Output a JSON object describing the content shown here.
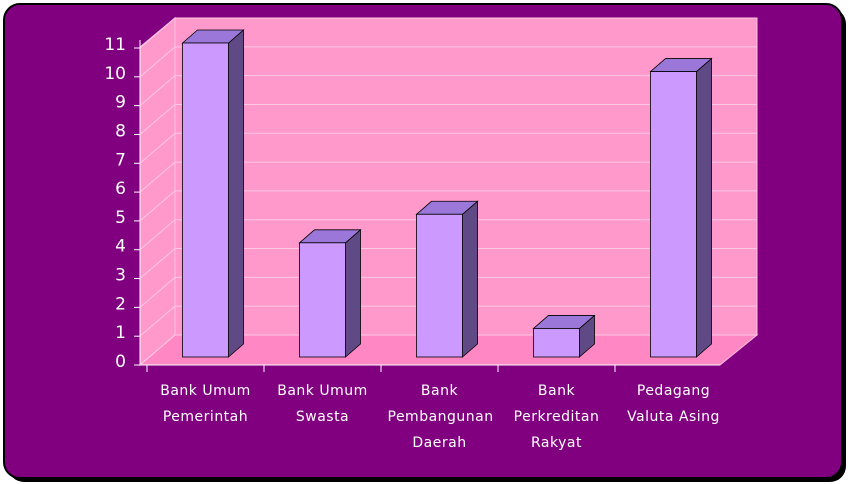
{
  "chart_data": {
    "type": "bar",
    "categories": [
      "Bank Umum Pemerintah",
      "Bank Umum Swasta",
      "Bank Pembangunan Daerah",
      "Bank Perkreditan Rakyat",
      "Pedagang Valuta Asing"
    ],
    "values": [
      11,
      4,
      5,
      1,
      10
    ],
    "color": "#cc99ff",
    "ylim": [
      0,
      11
    ],
    "yticks": [
      0,
      1,
      2,
      3,
      4,
      5,
      6,
      7,
      8,
      9,
      10,
      11
    ],
    "grid": true
  }
}
